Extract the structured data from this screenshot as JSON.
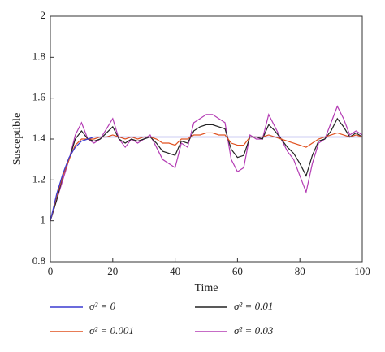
{
  "chart_data": {
    "type": "line",
    "xlabel": "Time",
    "ylabel": "Susceptible",
    "x": [
      0,
      2,
      4,
      6,
      8,
      10,
      12,
      14,
      16,
      18,
      20,
      22,
      24,
      26,
      28,
      30,
      32,
      34,
      36,
      38,
      40,
      42,
      44,
      46,
      48,
      50,
      52,
      54,
      56,
      58,
      60,
      62,
      64,
      66,
      68,
      70,
      72,
      74,
      76,
      78,
      80,
      82,
      84,
      86,
      88,
      90,
      92,
      94,
      96,
      98,
      100
    ],
    "series": [
      {
        "name": "σ² = 0",
        "color": "#3a3ad0",
        "values": [
          1.0,
          1.13,
          1.23,
          1.31,
          1.36,
          1.39,
          1.4,
          1.41,
          1.41,
          1.41,
          1.41,
          1.41,
          1.41,
          1.41,
          1.41,
          1.41,
          1.41,
          1.41,
          1.41,
          1.41,
          1.41,
          1.41,
          1.41,
          1.41,
          1.41,
          1.41,
          1.41,
          1.41,
          1.41,
          1.41,
          1.41,
          1.41,
          1.41,
          1.41,
          1.41,
          1.41,
          1.41,
          1.41,
          1.41,
          1.41,
          1.41,
          1.41,
          1.41,
          1.41,
          1.41,
          1.41,
          1.41,
          1.41,
          1.41,
          1.41,
          1.41
        ]
      },
      {
        "name": "σ² = 0.001",
        "color": "#e0501e",
        "values": [
          1.0,
          1.12,
          1.22,
          1.3,
          1.37,
          1.4,
          1.4,
          1.4,
          1.41,
          1.41,
          1.42,
          1.41,
          1.4,
          1.41,
          1.4,
          1.41,
          1.41,
          1.4,
          1.38,
          1.38,
          1.37,
          1.4,
          1.4,
          1.42,
          1.42,
          1.43,
          1.43,
          1.42,
          1.42,
          1.38,
          1.37,
          1.37,
          1.41,
          1.41,
          1.41,
          1.42,
          1.41,
          1.4,
          1.39,
          1.38,
          1.37,
          1.36,
          1.38,
          1.4,
          1.41,
          1.42,
          1.43,
          1.42,
          1.41,
          1.42,
          1.41
        ]
      },
      {
        "name": "σ² = 0.01",
        "color": "#222222",
        "values": [
          1.0,
          1.1,
          1.22,
          1.3,
          1.4,
          1.44,
          1.4,
          1.39,
          1.4,
          1.43,
          1.46,
          1.4,
          1.38,
          1.4,
          1.39,
          1.4,
          1.41,
          1.38,
          1.34,
          1.33,
          1.32,
          1.39,
          1.38,
          1.44,
          1.46,
          1.47,
          1.47,
          1.46,
          1.45,
          1.35,
          1.31,
          1.32,
          1.41,
          1.41,
          1.4,
          1.47,
          1.44,
          1.4,
          1.36,
          1.33,
          1.28,
          1.22,
          1.32,
          1.39,
          1.4,
          1.44,
          1.5,
          1.46,
          1.41,
          1.43,
          1.41
        ]
      },
      {
        "name": "σ² = 0.03",
        "color": "#b43cb4",
        "values": [
          1.0,
          1.1,
          1.2,
          1.3,
          1.42,
          1.48,
          1.4,
          1.38,
          1.4,
          1.45,
          1.5,
          1.4,
          1.36,
          1.4,
          1.38,
          1.4,
          1.42,
          1.36,
          1.3,
          1.28,
          1.26,
          1.38,
          1.36,
          1.48,
          1.5,
          1.52,
          1.52,
          1.5,
          1.48,
          1.3,
          1.24,
          1.26,
          1.42,
          1.4,
          1.4,
          1.52,
          1.46,
          1.4,
          1.34,
          1.3,
          1.22,
          1.14,
          1.28,
          1.38,
          1.4,
          1.48,
          1.56,
          1.5,
          1.42,
          1.44,
          1.42
        ]
      }
    ],
    "xlim": [
      0,
      100
    ],
    "xticks": [
      0,
      20,
      40,
      60,
      80,
      100
    ],
    "ylim": [
      0.8,
      2
    ],
    "yticks": [
      0.8,
      1,
      1.2,
      1.4,
      1.6,
      1.8,
      2
    ],
    "grid": false
  }
}
